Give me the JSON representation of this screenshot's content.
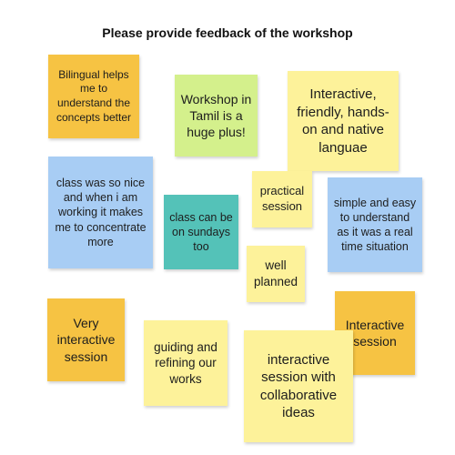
{
  "title": "Please provide feedback of the workshop",
  "notes": [
    {
      "text": "Bilingual helps me to understand the concepts better",
      "color": "#f6c343"
    },
    {
      "text": "Workshop in Tamil is a huge plus!",
      "color": "#d4f08c"
    },
    {
      "text": "Interactive, friendly, hands-on and native languae",
      "color": "#fdf29a"
    },
    {
      "text": "class was so nice and when i am working it makes me to concentrate more",
      "color": "#a8cdf4"
    },
    {
      "text": "class can be on sundays too",
      "color": "#54c2b8"
    },
    {
      "text": "practical session",
      "color": "#fdf29a"
    },
    {
      "text": "simple and easy to understand as it was a real time situation",
      "color": "#a8cdf4"
    },
    {
      "text": "well planned",
      "color": "#fdf29a"
    },
    {
      "text": "Very interactive session",
      "color": "#f6c343"
    },
    {
      "text": "guiding and refining our works",
      "color": "#fdf29a"
    },
    {
      "text": "Interactive session",
      "color": "#f6c343"
    },
    {
      "text": "interactive session with collaborative ideas",
      "color": "#fdf29a"
    }
  ]
}
